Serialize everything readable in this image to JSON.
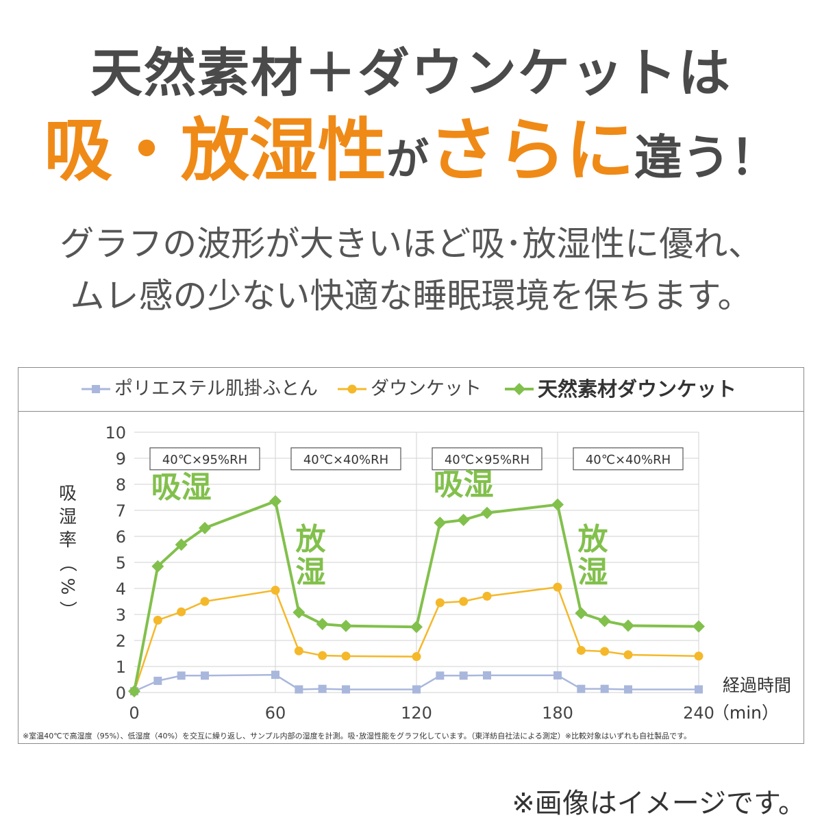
{
  "headline": {
    "line1": "天然素材＋ダウンケットは",
    "line2_part1": "吸・放湿性",
    "line2_part2": "が",
    "line2_part3": "さらに",
    "line2_part4": "違う！"
  },
  "subtitle": {
    "line1": "グラフの波形が大きいほど吸･放湿性に優れ、",
    "line2": "ムレ感の少ない快適な睡眠環境を保ちます。"
  },
  "legend": [
    {
      "label": "ポリエステル肌掛ふとん"
    },
    {
      "label": "ダウンケット"
    },
    {
      "label": "天然素材ダウンケット"
    }
  ],
  "chart_data": {
    "type": "line",
    "ylabel": "吸湿率（%）",
    "xlabel_line1": "経過時間",
    "xlabel_line2": "（min）",
    "xlim": [
      0,
      240
    ],
    "ylim": [
      0,
      10
    ],
    "xticks": [
      0,
      60,
      120,
      180,
      240
    ],
    "yticks": [
      0,
      1,
      2,
      3,
      4,
      5,
      6,
      7,
      8,
      9,
      10
    ],
    "grid": "horizontal",
    "phases": [
      {
        "label": "40℃×95%RH",
        "range": [
          0,
          60
        ]
      },
      {
        "label": "40℃×40%RH",
        "range": [
          60,
          120
        ]
      },
      {
        "label": "40℃×95%RH",
        "range": [
          120,
          180
        ]
      },
      {
        "label": "40℃×40%RH",
        "range": [
          180,
          240
        ]
      }
    ],
    "annotations": [
      {
        "text": "吸湿",
        "x": 20,
        "y": 7.5
      },
      {
        "text": "放湿",
        "x": 75,
        "y": 5.5
      },
      {
        "text": "吸湿",
        "x": 140,
        "y": 7.6
      },
      {
        "text": "放湿",
        "x": 195,
        "y": 5.5
      }
    ],
    "series": [
      {
        "name": "ポリエステル肌掛ふとん",
        "color": "#a9b7dc",
        "marker": "square",
        "x": [
          0,
          10,
          20,
          30,
          60,
          70,
          80,
          90,
          120,
          130,
          140,
          150,
          180,
          190,
          200,
          210,
          240
        ],
        "y": [
          0.05,
          0.45,
          0.65,
          0.65,
          0.68,
          0.12,
          0.14,
          0.12,
          0.12,
          0.65,
          0.65,
          0.66,
          0.66,
          0.14,
          0.14,
          0.12,
          0.12
        ]
      },
      {
        "name": "ダウンケット",
        "color": "#f4b82a",
        "marker": "circle",
        "x": [
          0,
          10,
          20,
          30,
          60,
          70,
          80,
          90,
          120,
          130,
          140,
          150,
          180,
          190,
          200,
          210,
          240
        ],
        "y": [
          0.05,
          2.78,
          3.1,
          3.5,
          3.93,
          1.6,
          1.42,
          1.4,
          1.38,
          3.45,
          3.5,
          3.7,
          4.05,
          1.62,
          1.58,
          1.45,
          1.4
        ]
      },
      {
        "name": "天然素材ダウンケット",
        "color": "#82c04c",
        "marker": "diamond",
        "x": [
          0,
          10,
          20,
          30,
          60,
          70,
          80,
          90,
          120,
          130,
          140,
          150,
          180,
          190,
          200,
          210,
          240
        ],
        "y": [
          0.05,
          4.85,
          5.68,
          6.32,
          7.35,
          3.08,
          2.63,
          2.56,
          2.52,
          6.52,
          6.63,
          6.9,
          7.22,
          3.05,
          2.75,
          2.57,
          2.54
        ]
      }
    ]
  },
  "footnote": "※室温40℃で高湿度（95%）、低湿度（40%）を交互に繰り返し、サンプル内部の湿度を計測。吸･放湿性能をグラフ化しています。（東洋紡自社法による測定）※比較対象はいずれも自社製品です。",
  "disclaimer": "※画像はイメージです。"
}
